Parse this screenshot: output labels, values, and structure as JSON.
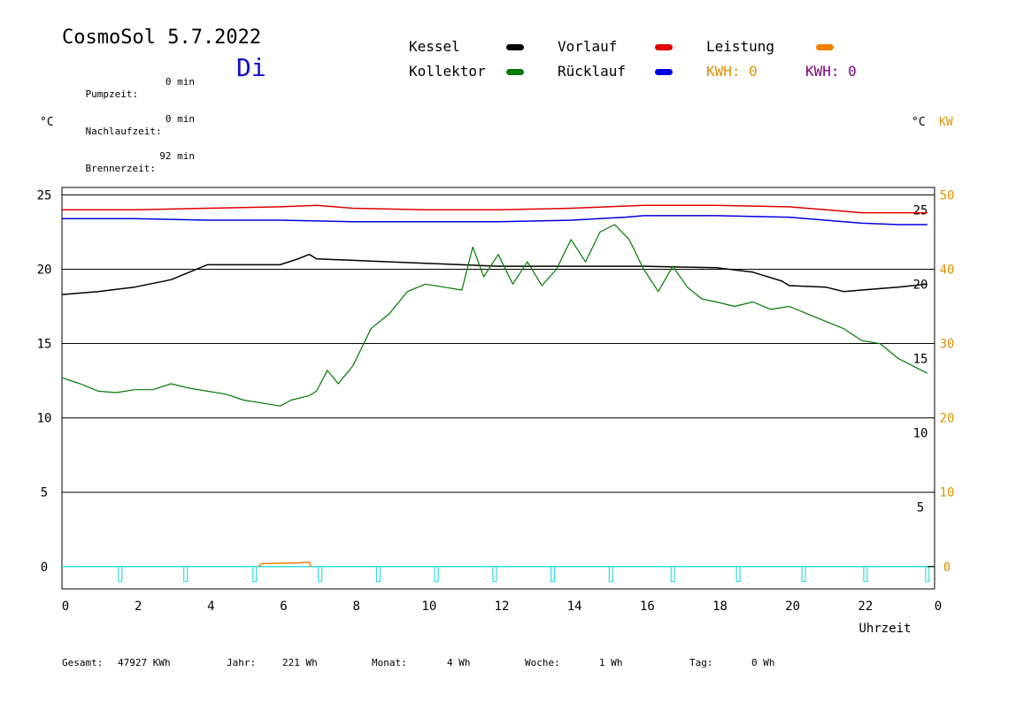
{
  "header": {
    "title": "CosmoSol 5.7.2022",
    "day": "Di",
    "stats": [
      {
        "label": "Pumpzeit:",
        "value": "0 min"
      },
      {
        "label": "Nachlaufzeit:",
        "value": "0 min"
      },
      {
        "label": "Brennerzeit:",
        "value": "92 min"
      }
    ]
  },
  "legend": {
    "kessel": {
      "label": "Kessel",
      "color": "#000000"
    },
    "kollektor": {
      "label": "Kollektor",
      "color": "#007a00"
    },
    "vorlauf": {
      "label": "Vorlauf",
      "color": "#e00000"
    },
    "ruecklauf": {
      "label": "Rücklauf",
      "color": "#0000e0"
    },
    "leistung": {
      "label": "Leistung",
      "color": "#f08000"
    },
    "kwh1": {
      "text": "KWH: 0",
      "color": "#e09000"
    },
    "kwh2": {
      "text": "KWH: 0",
      "color": "#800080"
    }
  },
  "axis_units": {
    "left": "°C",
    "right_temp": "°C",
    "right_power": "KW"
  },
  "footer": {
    "gesamt_label": "Gesamt:",
    "gesamt_value": "47927 KWh",
    "jahr_label": "Jahr:",
    "jahr_value": "221 Wh",
    "monat_label": "Monat:",
    "monat_value": "4 Wh",
    "woche_label": "Woche:",
    "woche_value": "1 Wh",
    "tag_label": "Tag:",
    "tag_value": "0 Wh"
  },
  "chart_data": {
    "type": "line",
    "xlabel": "Uhrzeit",
    "x_ticks": [
      "0",
      "2",
      "4",
      "6",
      "8",
      "10",
      "12",
      "14",
      "16",
      "18",
      "20",
      "22",
      "0"
    ],
    "xlim": [
      0,
      24
    ],
    "ylim": [
      -1.5,
      25.5
    ],
    "y_left_ticks": [
      0,
      5,
      10,
      15,
      20,
      25
    ],
    "y_right_temp_ticks": [
      5,
      10,
      15,
      20,
      25
    ],
    "y_right_power_ticks": [
      0,
      10,
      20,
      30,
      40,
      50
    ],
    "grid": "horizontal at 0, 5, 10, 15, 20, 25",
    "series": [
      {
        "name": "Vorlauf",
        "color": "#e00000",
        "x": [
          0,
          2,
          4,
          6,
          7,
          8,
          10,
          12,
          14,
          16,
          18,
          20,
          21.5,
          22,
          23,
          23.8
        ],
        "y": [
          24.0,
          24.0,
          24.1,
          24.2,
          24.3,
          24.1,
          24.0,
          24.0,
          24.1,
          24.3,
          24.3,
          24.2,
          23.9,
          23.8,
          23.8,
          23.8
        ]
      },
      {
        "name": "Rücklauf",
        "color": "#0000e0",
        "x": [
          0,
          2,
          4,
          6,
          8,
          10,
          12,
          14,
          15.5,
          16,
          18,
          20,
          21.5,
          22,
          23,
          23.8
        ],
        "y": [
          23.4,
          23.4,
          23.3,
          23.3,
          23.2,
          23.2,
          23.2,
          23.3,
          23.5,
          23.6,
          23.6,
          23.5,
          23.2,
          23.1,
          23.0,
          23.0
        ]
      },
      {
        "name": "Kessel",
        "color": "#000000",
        "x": [
          0,
          1,
          2,
          3,
          4,
          5,
          6,
          6.5,
          6.8,
          7,
          8,
          9,
          10,
          11,
          12,
          14,
          16,
          18,
          19,
          19.8,
          20,
          21,
          21.5,
          22,
          23,
          23.8
        ],
        "y": [
          18.3,
          18.5,
          18.8,
          19.3,
          20.3,
          20.3,
          20.3,
          20.7,
          21.0,
          20.7,
          20.6,
          20.5,
          20.4,
          20.3,
          20.2,
          20.2,
          20.2,
          20.1,
          19.8,
          19.2,
          18.9,
          18.8,
          18.5,
          18.6,
          18.8,
          19.0
        ]
      },
      {
        "name": "Kollektor",
        "color": "#007a00",
        "x": [
          0,
          0.5,
          1,
          1.5,
          2,
          2.5,
          3,
          3.5,
          4,
          4.5,
          5,
          5.5,
          6,
          6.3,
          6.8,
          7,
          7.3,
          7.6,
          8,
          8.5,
          9,
          9.5,
          10,
          10.5,
          11,
          11.3,
          11.6,
          12,
          12.4,
          12.8,
          13.2,
          13.6,
          14,
          14.4,
          14.8,
          15.2,
          15.6,
          16,
          16.4,
          16.8,
          17.2,
          17.6,
          18,
          18.5,
          19,
          19.5,
          20,
          20.5,
          21,
          21.5,
          22,
          22.5,
          23,
          23.8
        ],
        "y": [
          12.7,
          12.3,
          11.8,
          11.7,
          11.9,
          11.9,
          12.3,
          12.0,
          11.8,
          11.6,
          11.2,
          11.0,
          10.8,
          11.2,
          11.5,
          11.8,
          13.2,
          12.3,
          13.5,
          16.0,
          17.0,
          18.5,
          19.0,
          18.8,
          18.6,
          21.5,
          19.5,
          21.0,
          19.0,
          20.5,
          18.9,
          20.0,
          22.0,
          20.5,
          22.5,
          23.0,
          22.0,
          20.0,
          18.5,
          20.2,
          18.8,
          18.0,
          17.8,
          17.5,
          17.8,
          17.3,
          17.5,
          17.0,
          16.5,
          16.0,
          15.2,
          15.0,
          14.0,
          13.0
        ]
      },
      {
        "name": "Leistung",
        "color": "#f08000",
        "x": [
          5.4,
          5.5,
          6.5,
          6.8,
          6.85
        ],
        "y": [
          0.0,
          0.2,
          0.25,
          0.3,
          0.0
        ]
      }
    ],
    "pump_pulses_x": [
      1.6,
      3.4,
      5.3,
      7.1,
      8.7,
      10.3,
      11.9,
      13.5,
      15.1,
      16.8,
      18.6,
      20.4,
      22.1,
      23.8
    ]
  }
}
